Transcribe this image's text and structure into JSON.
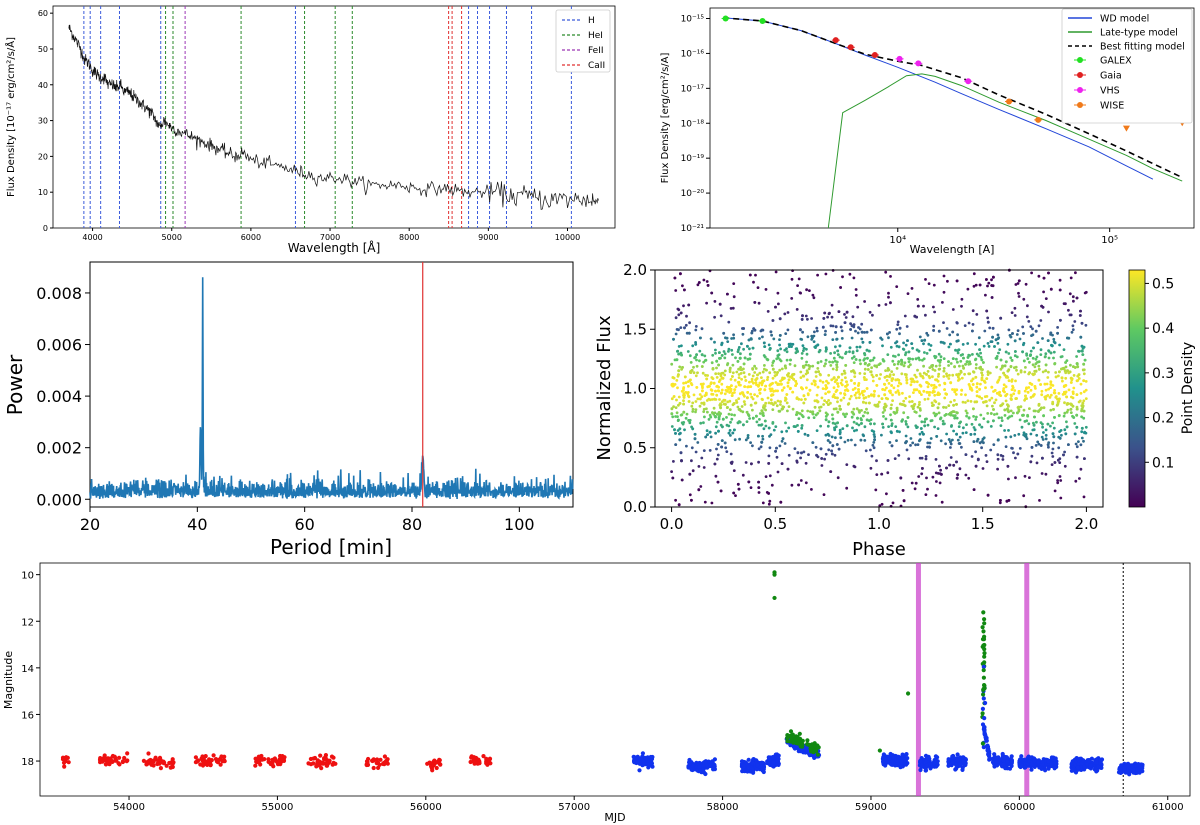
{
  "chart_data": [
    {
      "type": "line",
      "id": "spectrum",
      "xlabel": "Wavelength [Å]",
      "ylabel": "Flux Density [10⁻¹⁷ erg/cm²/s/Å]",
      "xlim": [
        3500,
        10600
      ],
      "ylim": [
        0,
        62
      ],
      "xticks": [
        4000,
        5000,
        6000,
        7000,
        8000,
        9000,
        10000
      ],
      "yticks": [
        0,
        10,
        20,
        30,
        40,
        50,
        60
      ],
      "series": [
        {
          "name": "spectrum",
          "x": [
            3700,
            3750,
            3800,
            3850,
            3900,
            3950,
            4000,
            4050,
            4100,
            4150,
            4200,
            4250,
            4300,
            4350,
            4400,
            4450,
            4500,
            4550,
            4600,
            4650,
            4700,
            4750,
            4800,
            4850,
            4900,
            4950,
            5000,
            5100,
            5200,
            5300,
            5400,
            5500,
            5600,
            5700,
            5800,
            5900,
            6000,
            6200,
            6400,
            6562,
            6700,
            6900,
            7100,
            7300,
            7500,
            7700,
            7900,
            8100,
            8300,
            8500,
            8700,
            8900,
            9100,
            9300,
            9500,
            9700,
            9900,
            10100,
            10300,
            10400
          ],
          "y": [
            56,
            54,
            52,
            50,
            47,
            46,
            44,
            43,
            42,
            42,
            40,
            40,
            39,
            40,
            38,
            38,
            37,
            36,
            35,
            34,
            33,
            32,
            30,
            28,
            30,
            29,
            28,
            27,
            26,
            25,
            24,
            23,
            22,
            21,
            20,
            21,
            19,
            18,
            17,
            16,
            15,
            14,
            14,
            13,
            12,
            12,
            12,
            11,
            11,
            11,
            10,
            10,
            10,
            9,
            9,
            8,
            8,
            8,
            8,
            7
          ]
        }
      ],
      "lines": [
        {
          "name": "H",
          "color": "#3b5bdb",
          "x": [
            3890,
            3970,
            4102,
            4340,
            4861,
            6563,
            8750,
            8863,
            9015,
            9229,
            9546,
            10049
          ]
        },
        {
          "name": "HeI",
          "color": "#2b8a2b",
          "x": [
            4922,
            5016,
            5876,
            6678,
            7065,
            7281
          ]
        },
        {
          "name": "FeII",
          "color": "#9c36b5",
          "x": [
            5169
          ]
        },
        {
          "name": "CaII",
          "color": "#e03131",
          "x": [
            8498,
            8542,
            8662
          ]
        }
      ],
      "legend": [
        "H",
        "HeI",
        "FeII",
        "CaII"
      ]
    },
    {
      "type": "scatter",
      "id": "sed",
      "xlabel": "Wavelength [A]",
      "ylabel": "Flux Density [erg/cm²/s/A]",
      "xscale": "log",
      "yscale": "log",
      "xlim": [
        1300,
        250000
      ],
      "ylim": [
        1e-21,
        2e-15
      ],
      "xticks": [
        {
          "v": 10000,
          "label": "10⁴"
        },
        {
          "v": 100000,
          "label": "10⁵"
        }
      ],
      "yticks": [
        {
          "v": 1e-15,
          "label": "10⁻¹⁵"
        },
        {
          "v": 1e-16,
          "label": "10⁻¹⁶"
        },
        {
          "v": 1e-17,
          "label": "10⁻¹⁷"
        },
        {
          "v": 1e-18,
          "label": "10⁻¹⁸"
        },
        {
          "v": 1e-19,
          "label": "10⁻¹⁹"
        },
        {
          "v": 1e-20,
          "label": "10⁻²⁰"
        },
        {
          "v": 1e-21,
          "label": "10⁻²¹"
        }
      ],
      "models": [
        {
          "name": "WD model",
          "color": "#2246d8",
          "dash": "",
          "x": [
            1500,
            2300,
            3500,
            5000,
            7000,
            10000,
            15000,
            20000,
            30000,
            50000,
            80000,
            120000,
            160000
          ],
          "y": [
            1.05e-15,
            8.5e-16,
            4.5e-16,
            2e-16,
            9e-17,
            4e-17,
            1.5e-17,
            7e-18,
            2.5e-18,
            7e-19,
            2.1e-19,
            6e-20,
            2.5e-20
          ]
        },
        {
          "name": "Late-type model",
          "color": "#2f9a2f",
          "dash": "",
          "x": [
            4700,
            5500,
            7000,
            9000,
            11000,
            13000,
            15000,
            20000,
            30000,
            50000,
            80000,
            120000,
            160000,
            220000
          ],
          "y": [
            1e-21,
            2e-18,
            4.5e-18,
            1.1e-17,
            2.3e-17,
            2.6e-17,
            2.2e-17,
            1.2e-17,
            4e-18,
            1.2e-18,
            3.5e-19,
            1.2e-19,
            5e-20,
            2.2e-20
          ]
        },
        {
          "name": "Best fitting model",
          "color": "#000000",
          "dash": "6,4",
          "x": [
            1500,
            2300,
            3500,
            5000,
            7000,
            10000,
            13000,
            20000,
            30000,
            50000,
            80000,
            120000,
            160000,
            220000
          ],
          "y": [
            1.05e-15,
            8.5e-16,
            4.5e-16,
            2e-16,
            9.5e-17,
            6e-17,
            4.5e-17,
            2e-17,
            6.5e-18,
            1.8e-18,
            5e-19,
            1.6e-19,
            7e-20,
            2.8e-20
          ]
        }
      ],
      "points": [
        {
          "name": "GALEX",
          "color": "#22e022",
          "marker": "circle",
          "x": [
            1540,
            2300
          ],
          "y": [
            1e-15,
            8.5e-16
          ]
        },
        {
          "name": "Gaia",
          "color": "#e02020",
          "marker": "circle",
          "x": [
            5100,
            6000,
            7800
          ],
          "y": [
            2.4e-16,
            1.5e-16,
            9e-17
          ]
        },
        {
          "name": "VHS",
          "color": "#ee22ee",
          "marker": "circle",
          "x": [
            10200,
            12500,
            21500
          ],
          "y": [
            7e-17,
            5.2e-17,
            1.6e-17
          ]
        },
        {
          "name": "WISE",
          "color": "#f07a1a",
          "marker": "circle",
          "x": [
            33500,
            46000
          ],
          "y": [
            4.2e-18,
            1.25e-18
          ]
        },
        {
          "name": "WISE upper limits",
          "color": "#f07a1a",
          "marker": "triangle",
          "x": [
            120000,
            220000
          ],
          "y": [
            7e-19,
            1e-18
          ]
        }
      ],
      "legend": [
        "WD model",
        "Late-type model",
        "Best fitting model",
        "GALEX",
        "Gaia",
        "VHS",
        "WISE"
      ]
    },
    {
      "type": "line",
      "id": "periodogram",
      "xlabel": "Period [min]",
      "ylabel": "Power",
      "xlim": [
        20,
        110
      ],
      "ylim": [
        -0.0003,
        0.0092
      ],
      "xticks": [
        20,
        40,
        60,
        80,
        100
      ],
      "yticks": [
        {
          "v": 0,
          "label": "0.000"
        },
        {
          "v": 0.002,
          "label": "0.002"
        },
        {
          "v": 0.004,
          "label": "0.004"
        },
        {
          "v": 0.006,
          "label": "0.006"
        },
        {
          "v": 0.008,
          "label": "0.008"
        }
      ],
      "color": "#1f77b4",
      "peak_x": 41.0,
      "peak_y": 0.0085,
      "harmonic_x": 82.0,
      "harmonic_y": 0.0013,
      "marker_line_x": 82.0,
      "marker_line_color": "#e03131",
      "noise_level": 0.0004
    },
    {
      "type": "scatter",
      "id": "phase_fold",
      "xlabel": "Phase",
      "ylabel": "Normalized Flux",
      "xlim": [
        -0.08,
        2.08
      ],
      "ylim": [
        0.0,
        2.0
      ],
      "xticks": [
        {
          "v": 0.0,
          "label": "0.0"
        },
        {
          "v": 0.5,
          "label": "0.5"
        },
        {
          "v": 1.0,
          "label": "1.0"
        },
        {
          "v": 1.5,
          "label": "1.5"
        },
        {
          "v": 2.0,
          "label": "2.0"
        }
      ],
      "yticks": [
        {
          "v": 0.0,
          "label": "0.0"
        },
        {
          "v": 0.5,
          "label": "0.5"
        },
        {
          "v": 1.0,
          "label": "1.0"
        },
        {
          "v": 1.5,
          "label": "1.5"
        },
        {
          "v": 2.0,
          "label": "2.0"
        }
      ],
      "center": 1.0,
      "spread": 0.28,
      "colorbar_label": "Point Density",
      "colorbar_ticks": [
        {
          "v": 0.1,
          "label": "0.1"
        },
        {
          "v": 0.2,
          "label": "0.2"
        },
        {
          "v": 0.3,
          "label": "0.3"
        },
        {
          "v": 0.4,
          "label": "0.4"
        },
        {
          "v": 0.5,
          "label": "0.5"
        }
      ],
      "colorbar_range": [
        0.0,
        0.53
      ],
      "colormap": [
        "#440154",
        "#3b528b",
        "#21918c",
        "#5ec962",
        "#fde725"
      ]
    },
    {
      "type": "scatter",
      "id": "light_curve",
      "xlabel": "MJD",
      "ylabel": "Magnitude",
      "xlim": [
        53400,
        61150
      ],
      "ylim": [
        19.5,
        9.5
      ],
      "xticks": [
        54000,
        55000,
        56000,
        57000,
        58000,
        59000,
        60000,
        61000
      ],
      "yticks": [
        10,
        12,
        14,
        16,
        18
      ],
      "series": [
        {
          "name": "red survey",
          "color": "#ee1111",
          "seasons": [
            [
              53550,
              53600,
              17.95
            ],
            [
              53800,
              54000,
              17.95
            ],
            [
              54100,
              54300,
              18.05
            ],
            [
              54450,
              54650,
              18.0
            ],
            [
              54850,
              55050,
              18.0
            ],
            [
              55200,
              55400,
              18.05
            ],
            [
              55600,
              55750,
              18.05
            ],
            [
              56000,
              56100,
              18.1
            ],
            [
              56300,
              56450,
              18.0
            ]
          ]
        },
        {
          "name": "blue survey",
          "color": "#1133ee",
          "seasons": [
            [
              57400,
              57530,
              18.0
            ],
            [
              57770,
              57950,
              18.2
            ],
            [
              58130,
              58280,
              18.2
            ],
            [
              58300,
              58380,
              18.0
            ],
            [
              59080,
              59250,
              17.95
            ],
            [
              59330,
              59450,
              18.1
            ],
            [
              59520,
              59640,
              18.05
            ],
            [
              59820,
              59950,
              18.0
            ],
            [
              60000,
              60250,
              18.1
            ],
            [
              60350,
              60560,
              18.15
            ],
            [
              60670,
              60830,
              18.3
            ]
          ],
          "slope_season": [
            58430,
            58650,
            17.1,
            17.75
          ]
        },
        {
          "name": "green survey",
          "color": "#118811",
          "seasons": [
            [
              58430,
              58650,
              16.9,
              17.5
            ]
          ]
        }
      ],
      "outburst_points": [
        {
          "x": 58350,
          "y": 9.9,
          "color": "#118811"
        },
        {
          "x": 58350,
          "y": 10.0,
          "color": "#118811"
        },
        {
          "x": 58350,
          "y": 11.0,
          "color": "#118811"
        },
        {
          "x": 59250,
          "y": 15.1,
          "color": "#118811"
        },
        {
          "x": 59060,
          "y": 17.55,
          "color": "#118811"
        }
      ],
      "flare": {
        "x": 59760,
        "peak": 11.5
      },
      "bands": [
        {
          "x": 59320,
          "color": "#cc44cc"
        },
        {
          "x": 60050,
          "color": "#cc44cc"
        }
      ],
      "vline": {
        "x": 60700,
        "color": "#000000"
      }
    }
  ]
}
